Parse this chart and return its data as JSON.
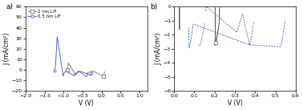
{
  "panel_a": {
    "xlabel": "V (V)",
    "ylabel": "J (mA/cm²)",
    "label": "a)",
    "xlim": [
      -2.0,
      1.2
    ],
    "ylim": [
      -20,
      60
    ],
    "xticks": [
      -2.0,
      -1.5,
      -1.0,
      -0.5,
      0.0,
      0.5,
      1.0
    ],
    "yticks": [
      -20,
      -10,
      0,
      10,
      20,
      30,
      40,
      50,
      60
    ],
    "legend_labels": [
      "2 nm LiF",
      "0.5 nm LiF"
    ],
    "black_color": "#666666",
    "blue_color": "#3355bb"
  },
  "panel_b": {
    "xlabel": "V (V)",
    "ylabel": "J (mA/cm²)",
    "label": "b)",
    "xlim": [
      0.0,
      0.6
    ],
    "ylim": [
      -6,
      0
    ],
    "xticks": [
      0.0,
      0.1,
      0.2,
      0.3,
      0.4,
      0.5,
      0.6
    ],
    "yticks": [
      -6,
      -5,
      -4,
      -3,
      -2,
      -1,
      0
    ],
    "black_color": "#666666",
    "blue_color": "#3355bb"
  }
}
